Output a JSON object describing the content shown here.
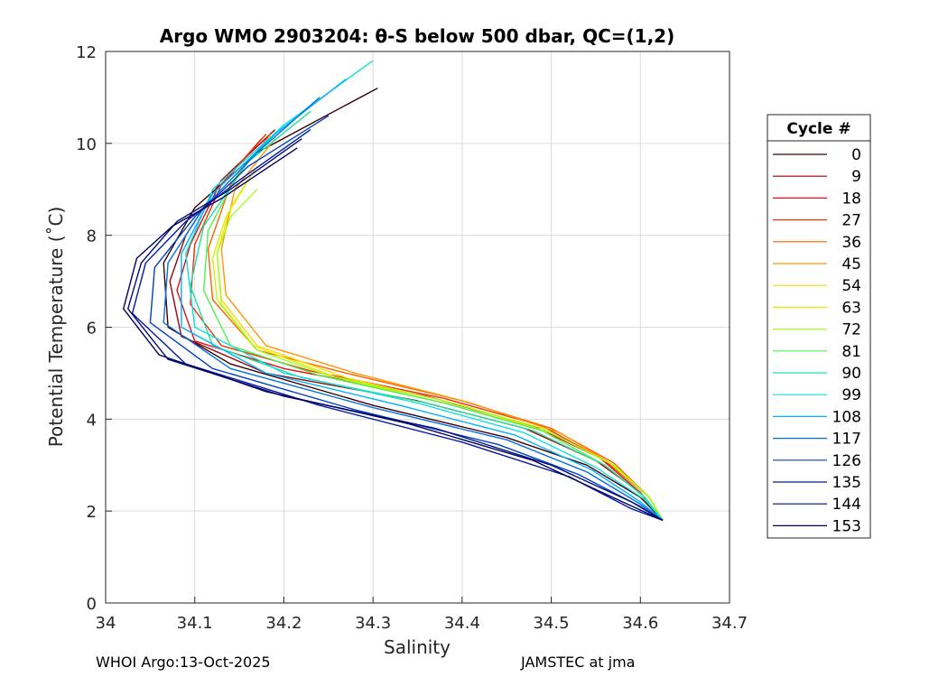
{
  "chart_data": {
    "type": "line",
    "title": "Argo WMO 2903204: θ-S below 500 dbar,  QC=(1,2)",
    "xlabel": "Salinity",
    "ylabel": "Potential Temperature (˚C)",
    "xlim": [
      34,
      34.7
    ],
    "ylim": [
      0,
      12
    ],
    "xticks": [
      34,
      34.1,
      34.2,
      34.3,
      34.4,
      34.5,
      34.6,
      34.7
    ],
    "xtick_labels": [
      "34",
      "34.1",
      "34.2",
      "34.3",
      "34.4",
      "34.5",
      "34.6",
      "34.7"
    ],
    "yticks": [
      0,
      2,
      4,
      6,
      8,
      10,
      12
    ],
    "ytick_labels": [
      "0",
      "2",
      "4",
      "6",
      "8",
      "10",
      "12"
    ],
    "grid": true,
    "legend_title": "Cycle #",
    "legend_position": "right",
    "legend": [
      {
        "label": "0",
        "color": "#3d0000"
      },
      {
        "label": "9",
        "color": "#a00000"
      },
      {
        "label": "18",
        "color": "#e01010"
      },
      {
        "label": "27",
        "color": "#f03010"
      },
      {
        "label": "36",
        "color": "#ff6000"
      },
      {
        "label": "45",
        "color": "#ff9800"
      },
      {
        "label": "54",
        "color": "#ffd800"
      },
      {
        "label": "63",
        "color": "#d8f000"
      },
      {
        "label": "72",
        "color": "#a0ff20"
      },
      {
        "label": "81",
        "color": "#50f050"
      },
      {
        "label": "90",
        "color": "#20e0a0"
      },
      {
        "label": "99",
        "color": "#10e0e0"
      },
      {
        "label": "108",
        "color": "#00b0ff"
      },
      {
        "label": "117",
        "color": "#0070e0"
      },
      {
        "label": "126",
        "color": "#0040c0"
      },
      {
        "label": "135",
        "color": "#0018a0"
      },
      {
        "label": "144",
        "color": "#000c78"
      },
      {
        "label": "153",
        "color": "#000060"
      }
    ],
    "series": [
      {
        "name": "0",
        "color": "#3d0000",
        "points": [
          [
            34.305,
            11.2
          ],
          [
            34.17,
            9.8
          ],
          [
            34.1,
            8.6
          ],
          [
            34.065,
            7.4
          ],
          [
            34.07,
            6.0
          ],
          [
            34.14,
            5.2
          ],
          [
            34.3,
            4.3
          ],
          [
            34.45,
            3.6
          ],
          [
            34.54,
            3.0
          ],
          [
            34.6,
            2.3
          ],
          [
            34.625,
            1.8
          ]
        ]
      },
      {
        "name": "9",
        "color": "#a00000",
        "points": [
          [
            34.19,
            10.3
          ],
          [
            34.13,
            9.2
          ],
          [
            34.09,
            8.0
          ],
          [
            34.072,
            7.0
          ],
          [
            34.085,
            5.8
          ],
          [
            34.18,
            5.0
          ],
          [
            34.35,
            4.4
          ],
          [
            34.47,
            3.8
          ],
          [
            34.55,
            3.1
          ],
          [
            34.6,
            2.4
          ],
          [
            34.625,
            1.8
          ]
        ]
      },
      {
        "name": "18",
        "color": "#e01010",
        "points": [
          [
            34.175,
            10.1
          ],
          [
            34.125,
            9.0
          ],
          [
            34.095,
            7.8
          ],
          [
            34.08,
            6.8
          ],
          [
            34.1,
            5.7
          ],
          [
            34.2,
            5.1
          ],
          [
            34.36,
            4.5
          ],
          [
            34.48,
            3.85
          ],
          [
            34.555,
            3.15
          ],
          [
            34.6,
            2.4
          ],
          [
            34.625,
            1.8
          ]
        ]
      },
      {
        "name": "27",
        "color": "#f03010",
        "points": [
          [
            34.18,
            10.2
          ],
          [
            34.13,
            9.1
          ],
          [
            34.1,
            7.8
          ],
          [
            34.095,
            6.5
          ],
          [
            34.13,
            5.6
          ],
          [
            34.23,
            5.05
          ],
          [
            34.38,
            4.45
          ],
          [
            34.49,
            3.85
          ],
          [
            34.56,
            3.1
          ],
          [
            34.61,
            2.3
          ],
          [
            34.625,
            1.8
          ]
        ]
      },
      {
        "name": "36",
        "color": "#ff6000",
        "points": [
          [
            34.185,
            10.2
          ],
          [
            34.14,
            9.1
          ],
          [
            34.115,
            7.7
          ],
          [
            34.12,
            6.6
          ],
          [
            34.17,
            5.5
          ],
          [
            34.27,
            5.0
          ],
          [
            34.4,
            4.4
          ],
          [
            34.5,
            3.8
          ],
          [
            34.57,
            3.05
          ],
          [
            34.61,
            2.3
          ],
          [
            34.625,
            1.8
          ]
        ]
      },
      {
        "name": "45",
        "color": "#ff9800",
        "points": [
          [
            34.19,
            10.1
          ],
          [
            34.145,
            9.0
          ],
          [
            34.13,
            7.7
          ],
          [
            34.135,
            6.7
          ],
          [
            34.18,
            5.6
          ],
          [
            34.28,
            5.0
          ],
          [
            34.41,
            4.35
          ],
          [
            34.51,
            3.7
          ],
          [
            34.57,
            3.0
          ],
          [
            34.61,
            2.3
          ],
          [
            34.625,
            1.8
          ]
        ]
      },
      {
        "name": "54",
        "color": "#ffd800",
        "points": [
          [
            34.17,
            9.5
          ],
          [
            34.14,
            8.6
          ],
          [
            34.125,
            7.6
          ],
          [
            34.13,
            6.6
          ],
          [
            34.17,
            5.6
          ],
          [
            34.27,
            4.9
          ],
          [
            34.4,
            4.3
          ],
          [
            34.5,
            3.7
          ],
          [
            34.57,
            3.0
          ],
          [
            34.61,
            2.3
          ],
          [
            34.625,
            1.8
          ]
        ]
      },
      {
        "name": "63",
        "color": "#d8f000",
        "points": [
          [
            34.16,
            9.2
          ],
          [
            34.135,
            8.4
          ],
          [
            34.12,
            7.5
          ],
          [
            34.125,
            6.6
          ],
          [
            34.165,
            5.6
          ],
          [
            34.26,
            4.9
          ],
          [
            34.39,
            4.3
          ],
          [
            34.5,
            3.7
          ],
          [
            34.57,
            3.0
          ],
          [
            34.61,
            2.3
          ],
          [
            34.625,
            1.8
          ]
        ]
      },
      {
        "name": "72",
        "color": "#a0ff20",
        "points": [
          [
            34.17,
            9.0
          ],
          [
            34.14,
            8.4
          ],
          [
            34.125,
            7.6
          ],
          [
            34.13,
            6.5
          ],
          [
            34.17,
            5.5
          ],
          [
            34.25,
            4.95
          ],
          [
            34.38,
            4.4
          ],
          [
            34.49,
            3.8
          ],
          [
            34.565,
            3.05
          ],
          [
            34.61,
            2.3
          ],
          [
            34.625,
            1.8
          ]
        ]
      },
      {
        "name": "81",
        "color": "#50f050",
        "points": [
          [
            34.2,
            10.4
          ],
          [
            34.15,
            9.4
          ],
          [
            34.115,
            8.1
          ],
          [
            34.11,
            6.8
          ],
          [
            34.14,
            5.6
          ],
          [
            34.24,
            4.95
          ],
          [
            34.38,
            4.35
          ],
          [
            34.49,
            3.75
          ],
          [
            34.56,
            3.0
          ],
          [
            34.605,
            2.3
          ],
          [
            34.625,
            1.8
          ]
        ]
      },
      {
        "name": "90",
        "color": "#20e0a0",
        "points": [
          [
            34.23,
            10.7
          ],
          [
            34.16,
            9.6
          ],
          [
            34.11,
            8.2
          ],
          [
            34.095,
            6.9
          ],
          [
            34.12,
            5.6
          ],
          [
            34.22,
            4.9
          ],
          [
            34.36,
            4.35
          ],
          [
            34.48,
            3.75
          ],
          [
            34.56,
            3.0
          ],
          [
            34.605,
            2.3
          ],
          [
            34.625,
            1.8
          ]
        ]
      },
      {
        "name": "99",
        "color": "#10e0e0",
        "points": [
          [
            34.3,
            11.8
          ],
          [
            34.2,
            10.4
          ],
          [
            34.12,
            9.0
          ],
          [
            34.09,
            7.6
          ],
          [
            34.1,
            6.0
          ],
          [
            34.2,
            5.0
          ],
          [
            34.35,
            4.35
          ],
          [
            34.47,
            3.7
          ],
          [
            34.55,
            2.95
          ],
          [
            34.605,
            2.25
          ],
          [
            34.625,
            1.8
          ]
        ]
      },
      {
        "name": "108",
        "color": "#00b0ff",
        "points": [
          [
            34.27,
            11.4
          ],
          [
            34.19,
            10.2
          ],
          [
            34.12,
            8.9
          ],
          [
            34.085,
            7.6
          ],
          [
            34.085,
            6.0
          ],
          [
            34.18,
            5.0
          ],
          [
            34.33,
            4.3
          ],
          [
            34.46,
            3.65
          ],
          [
            34.545,
            2.9
          ],
          [
            34.6,
            2.2
          ],
          [
            34.625,
            1.8
          ]
        ]
      },
      {
        "name": "117",
        "color": "#0070e0",
        "points": [
          [
            34.24,
            11.0
          ],
          [
            34.17,
            9.8
          ],
          [
            34.11,
            8.6
          ],
          [
            34.07,
            7.4
          ],
          [
            34.065,
            6.1
          ],
          [
            34.14,
            5.1
          ],
          [
            34.3,
            4.25
          ],
          [
            34.45,
            3.55
          ],
          [
            34.54,
            2.85
          ],
          [
            34.6,
            2.15
          ],
          [
            34.625,
            1.8
          ]
        ]
      },
      {
        "name": "126",
        "color": "#0040c0",
        "points": [
          [
            34.25,
            10.6
          ],
          [
            34.16,
            9.5
          ],
          [
            34.1,
            8.4
          ],
          [
            34.055,
            7.3
          ],
          [
            34.05,
            6.1
          ],
          [
            34.12,
            5.1
          ],
          [
            34.28,
            4.2
          ],
          [
            34.44,
            3.45
          ],
          [
            34.53,
            2.8
          ],
          [
            34.6,
            2.1
          ],
          [
            34.625,
            1.8
          ]
        ]
      },
      {
        "name": "135",
        "color": "#0018a0",
        "points": [
          [
            34.23,
            10.3
          ],
          [
            34.15,
            9.2
          ],
          [
            34.09,
            8.3
          ],
          [
            34.045,
            7.4
          ],
          [
            34.03,
            6.3
          ],
          [
            34.09,
            5.2
          ],
          [
            34.24,
            4.3
          ],
          [
            34.4,
            3.5
          ],
          [
            34.52,
            2.75
          ],
          [
            34.59,
            2.05
          ],
          [
            34.625,
            1.8
          ]
        ]
      },
      {
        "name": "144",
        "color": "#000c78",
        "points": [
          [
            34.22,
            10.1
          ],
          [
            34.14,
            9.0
          ],
          [
            34.08,
            8.3
          ],
          [
            34.04,
            7.4
          ],
          [
            34.025,
            6.4
          ],
          [
            34.07,
            5.3
          ],
          [
            34.2,
            4.5
          ],
          [
            34.37,
            3.8
          ],
          [
            34.5,
            3.0
          ],
          [
            34.59,
            2.2
          ],
          [
            34.625,
            1.8
          ]
        ]
      },
      {
        "name": "153",
        "color": "#000060",
        "points": [
          [
            34.215,
            9.9
          ],
          [
            34.13,
            8.8
          ],
          [
            34.075,
            8.2
          ],
          [
            34.035,
            7.5
          ],
          [
            34.02,
            6.4
          ],
          [
            34.06,
            5.4
          ],
          [
            34.18,
            4.6
          ],
          [
            34.34,
            3.9
          ],
          [
            34.48,
            3.1
          ],
          [
            34.58,
            2.2
          ],
          [
            34.625,
            1.8
          ]
        ]
      }
    ]
  },
  "footer": {
    "left": "WHOI Argo:13-Oct-2025",
    "right": "JAMSTEC at jma"
  }
}
